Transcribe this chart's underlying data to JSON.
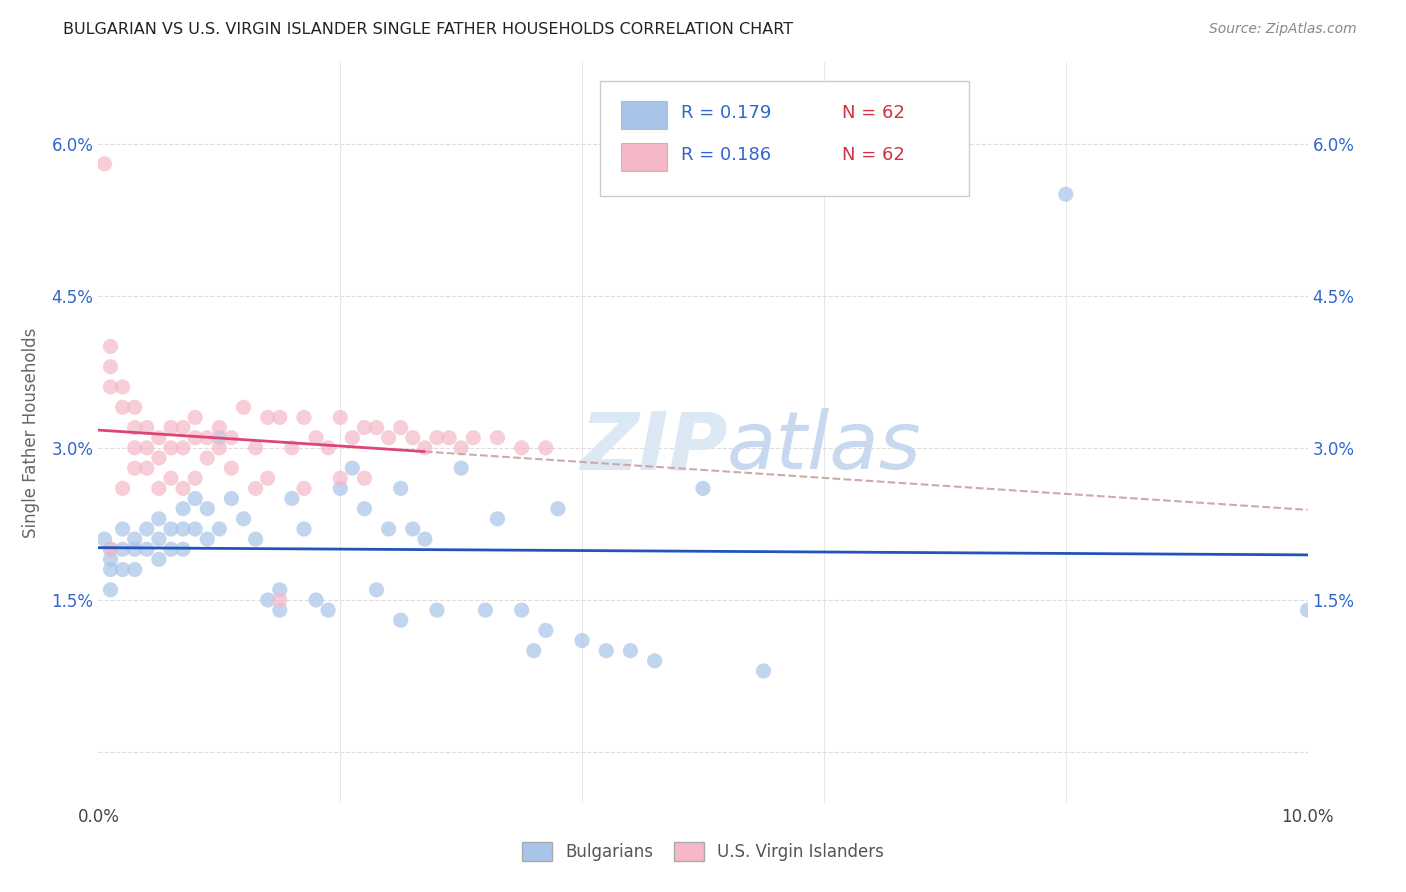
{
  "title": "BULGARIAN VS U.S. VIRGIN ISLANDER SINGLE FATHER HOUSEHOLDS CORRELATION CHART",
  "source": "Source: ZipAtlas.com",
  "ylabel": "Single Father Households",
  "xlim": [
    0.0,
    0.1
  ],
  "ylim": [
    -0.005,
    0.068
  ],
  "xtick_positions": [
    0.0,
    0.02,
    0.04,
    0.06,
    0.08,
    0.1
  ],
  "xtick_labels": [
    "0.0%",
    "",
    "",
    "",
    "",
    "10.0%"
  ],
  "ytick_positions": [
    0.0,
    0.015,
    0.03,
    0.045,
    0.06
  ],
  "ytick_labels": [
    "",
    "1.5%",
    "3.0%",
    "4.5%",
    "6.0%"
  ],
  "bulgarian_color": "#a8c4e8",
  "virgin_color": "#f4b8c8",
  "trend_bulgarian_color": "#2255bb",
  "trend_virgin_color": "#dd4477",
  "trend_virgin_dashed_color": "#ccaaaa",
  "watermark_color": "#dde8f5",
  "background_color": "#ffffff",
  "grid_color": "#dddddd",
  "title_color": "#222222",
  "source_color": "#888888",
  "tick_color": "#3366cc",
  "legend_r_color": "#3366cc",
  "legend_n_color": "#cc3344",
  "legend_border_color": "#cccccc",
  "bulgarian_x": [
    0.0005,
    0.001,
    0.001,
    0.001,
    0.001,
    0.002,
    0.002,
    0.002,
    0.003,
    0.003,
    0.003,
    0.004,
    0.004,
    0.005,
    0.005,
    0.005,
    0.006,
    0.006,
    0.007,
    0.007,
    0.007,
    0.008,
    0.008,
    0.009,
    0.009,
    0.01,
    0.01,
    0.011,
    0.012,
    0.013,
    0.014,
    0.015,
    0.015,
    0.016,
    0.017,
    0.018,
    0.019,
    0.02,
    0.021,
    0.022,
    0.023,
    0.024,
    0.025,
    0.025,
    0.026,
    0.027,
    0.028,
    0.03,
    0.032,
    0.033,
    0.035,
    0.036,
    0.037,
    0.038,
    0.04,
    0.042,
    0.044,
    0.046,
    0.05,
    0.055,
    0.08,
    0.1
  ],
  "bulgarian_y": [
    0.021,
    0.02,
    0.019,
    0.018,
    0.016,
    0.022,
    0.02,
    0.018,
    0.021,
    0.02,
    0.018,
    0.022,
    0.02,
    0.023,
    0.021,
    0.019,
    0.022,
    0.02,
    0.024,
    0.022,
    0.02,
    0.025,
    0.022,
    0.024,
    0.021,
    0.031,
    0.022,
    0.025,
    0.023,
    0.021,
    0.015,
    0.014,
    0.016,
    0.025,
    0.022,
    0.015,
    0.014,
    0.026,
    0.028,
    0.024,
    0.016,
    0.022,
    0.026,
    0.013,
    0.022,
    0.021,
    0.014,
    0.028,
    0.014,
    0.023,
    0.014,
    0.01,
    0.012,
    0.024,
    0.011,
    0.01,
    0.01,
    0.009,
    0.026,
    0.008,
    0.055,
    0.014
  ],
  "virgin_x": [
    0.0005,
    0.001,
    0.001,
    0.001,
    0.001,
    0.002,
    0.002,
    0.002,
    0.003,
    0.003,
    0.003,
    0.003,
    0.004,
    0.004,
    0.004,
    0.005,
    0.005,
    0.005,
    0.006,
    0.006,
    0.006,
    0.007,
    0.007,
    0.007,
    0.008,
    0.008,
    0.008,
    0.009,
    0.009,
    0.01,
    0.01,
    0.011,
    0.011,
    0.012,
    0.013,
    0.013,
    0.014,
    0.014,
    0.015,
    0.016,
    0.017,
    0.017,
    0.018,
    0.019,
    0.02,
    0.02,
    0.021,
    0.022,
    0.022,
    0.023,
    0.024,
    0.025,
    0.026,
    0.027,
    0.028,
    0.029,
    0.03,
    0.031,
    0.033,
    0.035,
    0.037,
    0.015
  ],
  "virgin_y": [
    0.058,
    0.04,
    0.038,
    0.036,
    0.02,
    0.036,
    0.034,
    0.026,
    0.034,
    0.032,
    0.03,
    0.028,
    0.032,
    0.03,
    0.028,
    0.031,
    0.029,
    0.026,
    0.032,
    0.03,
    0.027,
    0.032,
    0.03,
    0.026,
    0.033,
    0.031,
    0.027,
    0.031,
    0.029,
    0.032,
    0.03,
    0.031,
    0.028,
    0.034,
    0.03,
    0.026,
    0.033,
    0.027,
    0.033,
    0.03,
    0.033,
    0.026,
    0.031,
    0.03,
    0.033,
    0.027,
    0.031,
    0.032,
    0.027,
    0.032,
    0.031,
    0.032,
    0.031,
    0.03,
    0.031,
    0.031,
    0.03,
    0.031,
    0.031,
    0.03,
    0.03,
    0.015
  ]
}
